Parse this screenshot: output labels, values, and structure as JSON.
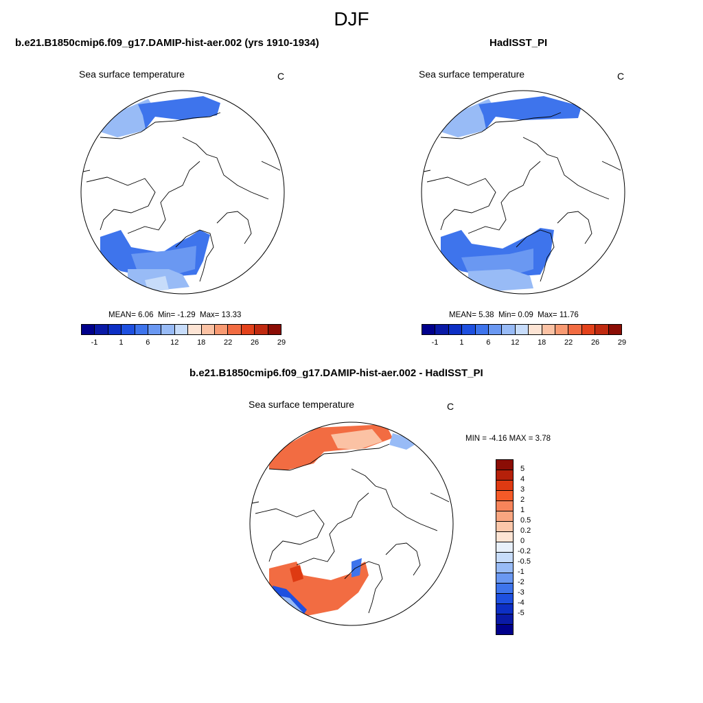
{
  "figure": {
    "title": "DJF"
  },
  "panels": {
    "model": {
      "title": "b.e21.B1850cmip6.f09_g17.DAMIP-hist-aer.002 (yrs 1910-1934)",
      "variable": "Sea surface temperature",
      "units": "C",
      "stats": {
        "mean_label": "MEAN=",
        "mean": "6.06",
        "min_label": "Min=",
        "min": "-1.29",
        "max_label": "Max=",
        "max": "13.33"
      }
    },
    "obs": {
      "title": "HadISST_PI",
      "variable": "Sea surface temperature",
      "units": "C",
      "stats": {
        "mean_label": "MEAN=",
        "mean": "5.38",
        "min_label": "Min=",
        "min": "0.09",
        "max_label": "Max=",
        "max": "11.76"
      }
    },
    "diff": {
      "title": "b.e21.B1850cmip6.f09_g17.DAMIP-hist-aer.002 - HadISST_PI",
      "variable": "Sea surface temperature",
      "units": "C",
      "stats": {
        "min_label": "MIN =",
        "min": "-4.16",
        "max_label": "MAX =",
        "max": "3.78"
      }
    }
  },
  "colorbars": {
    "sst": {
      "colors": [
        "#00008b",
        "#0a1aa6",
        "#0d2fc4",
        "#1e50e0",
        "#3e74ec",
        "#6a98f2",
        "#98bbf6",
        "#c7dcfa",
        "#fde4d4",
        "#fbc2a4",
        "#f89a72",
        "#f26c42",
        "#e3421b",
        "#c02a10",
        "#8b0d05"
      ],
      "tick_labels": [
        "-1",
        "1",
        "6",
        "12",
        "18",
        "22",
        "26",
        "29"
      ]
    },
    "diff": {
      "colors_top_to_bottom": [
        "#8b0d05",
        "#b5200a",
        "#de3a12",
        "#f45a28",
        "#f7845a",
        "#f9a680",
        "#fbc7aa",
        "#fde4d4",
        "#e8f0fa",
        "#c7dcfa",
        "#98bbf6",
        "#6a98f2",
        "#3e74ec",
        "#1e50e0",
        "#0d2fc4",
        "#0a1aa6",
        "#00008b"
      ],
      "tick_labels": [
        "5",
        "4",
        "3",
        "2",
        "1",
        "0.5",
        "0.2",
        "0",
        "-0.2",
        "-0.5",
        "-1",
        "-2",
        "-3",
        "-4",
        "-5"
      ]
    }
  }
}
